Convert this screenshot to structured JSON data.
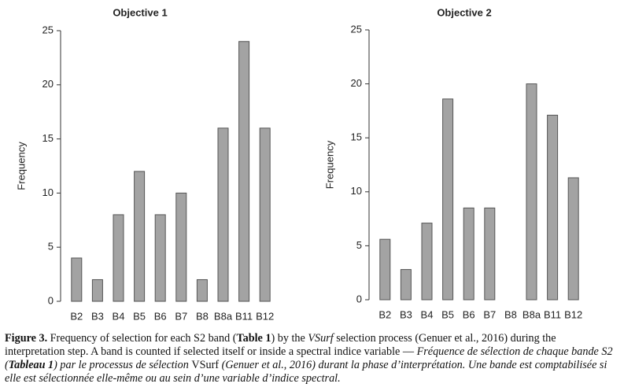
{
  "chart_data": [
    {
      "type": "bar",
      "title": "Objective 1",
      "y_label": "Frequency",
      "categories": [
        "B2",
        "B3",
        "B4",
        "B5",
        "B6",
        "B7",
        "B8",
        "B8a",
        "B11",
        "B12"
      ],
      "values": [
        4,
        2,
        8,
        12,
        8,
        10,
        2,
        16,
        24,
        16
      ],
      "color": "#a3a3a3",
      "ylim": [
        0,
        25
      ],
      "yticks": [
        0,
        5,
        10,
        15,
        20,
        25
      ],
      "grid": false
    },
    {
      "type": "bar",
      "title": "Objective 2",
      "y_label": "Frequency",
      "categories": [
        "B2",
        "B3",
        "B4",
        "B5",
        "B6",
        "B7",
        "B8",
        "B8a",
        "B11",
        "B12"
      ],
      "values": [
        5.6,
        2.8,
        7.1,
        18.6,
        8.5,
        8.5,
        0,
        20,
        17.1,
        11.3
      ],
      "color": "#a3a3a3",
      "ylim": [
        0,
        25
      ],
      "yticks": [
        0,
        5,
        10,
        15,
        20,
        25
      ],
      "grid": false
    }
  ],
  "caption": [
    {
      "text": "Figure 3.",
      "style": "bold"
    },
    {
      "text": " Frequency of selection for each S2 band (",
      "style": "normal"
    },
    {
      "text": "Table 1",
      "style": "bold"
    },
    {
      "text": ") by the ",
      "style": "normal"
    },
    {
      "text": "VSurf",
      "style": "italic"
    },
    {
      "text": " selection process (Genuer et al., 2016) during the interpretation step. A band is counted if selected itself or inside a spectral indice variable — ",
      "style": "normal"
    },
    {
      "text": "Fréquence de sélection de chaque bande S2 (",
      "style": "italic"
    },
    {
      "text": "Tableau 1",
      "style": "bold-italic"
    },
    {
      "text": ") par le processus de sélection ",
      "style": "italic"
    },
    {
      "text": "VSurf",
      "style": "normal"
    },
    {
      "text": " (Genuer et al., 2016) durant la phase d’interprétation. Une bande est comptabilisée si elle est sélectionnée elle-même ou au sein d’une variable d’indice spectral.",
      "style": "italic"
    }
  ]
}
